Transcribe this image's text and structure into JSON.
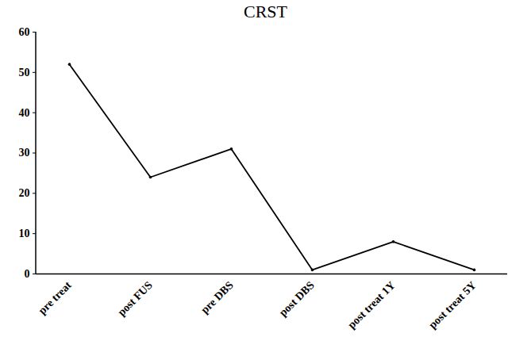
{
  "chart_data": {
    "type": "line",
    "title": "CRST",
    "categories": [
      "pre treat",
      "post FUS",
      "pre DBS",
      "post DBS",
      "post treat 1Y",
      "post treat 5Y"
    ],
    "values": [
      52,
      24,
      31,
      1,
      8,
      1
    ],
    "color": "#000000",
    "marker": "dot",
    "ylim": [
      0,
      60
    ],
    "yticks": [
      0,
      10,
      20,
      30,
      40,
      50,
      60
    ],
    "grid": false
  }
}
